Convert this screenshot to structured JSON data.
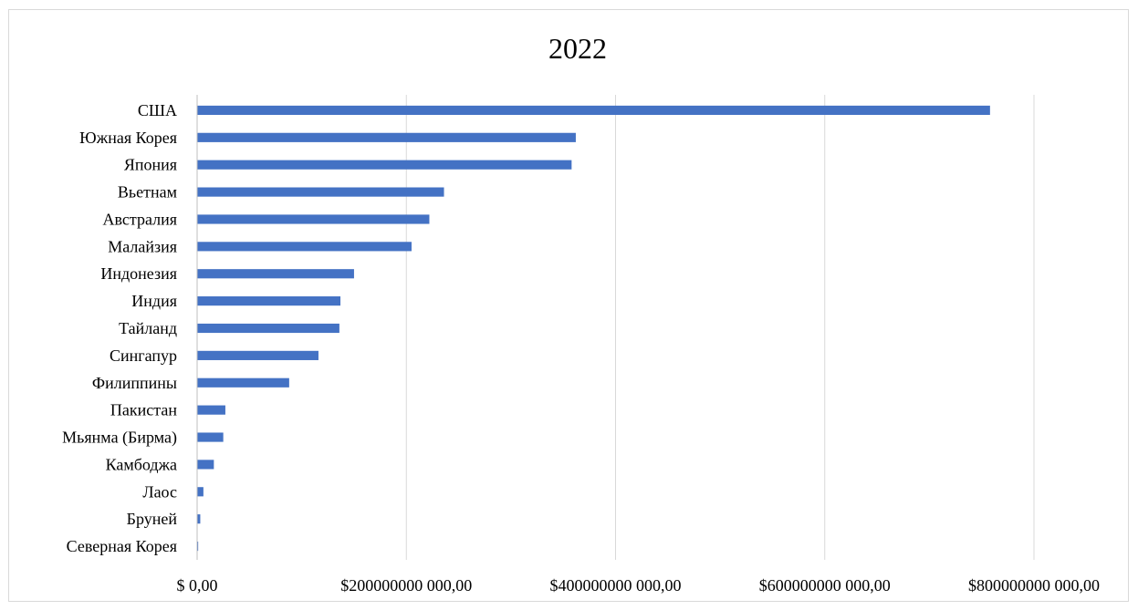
{
  "chart_data": {
    "type": "bar",
    "orientation": "horizontal",
    "title": "2022",
    "xlabel": "",
    "ylabel": "",
    "categories": [
      "США",
      "Южная Корея",
      "Япония",
      "Вьетнам",
      "Австралия",
      "Малайзия",
      "Индонезия",
      "Индия",
      "Тайланд",
      "Сингапур",
      "Филиппины",
      "Пакистан",
      "Мьянма (Бирма)",
      "Камбоджа",
      "Лаос",
      "Бруней",
      "Северная Корея"
    ],
    "values": [
      758000000000,
      362000000000,
      358000000000,
      236000000000,
      222000000000,
      205000000000,
      150000000000,
      137000000000,
      136000000000,
      116000000000,
      88000000000,
      27000000000,
      25000000000,
      16000000000,
      6000000000,
      3000000000,
      1000000000
    ],
    "xlim": [
      0,
      800000000000
    ],
    "x_ticks": [
      0,
      200000000000,
      400000000000,
      600000000000,
      800000000000
    ],
    "x_tick_labels": [
      "$ 0,00",
      "$200000000 000,00",
      "$400000000 000,00",
      "$600000000 000,00",
      "$800000000 000,00"
    ],
    "grid": "vertical",
    "legend": "none",
    "bar_color": "#4472c4"
  }
}
